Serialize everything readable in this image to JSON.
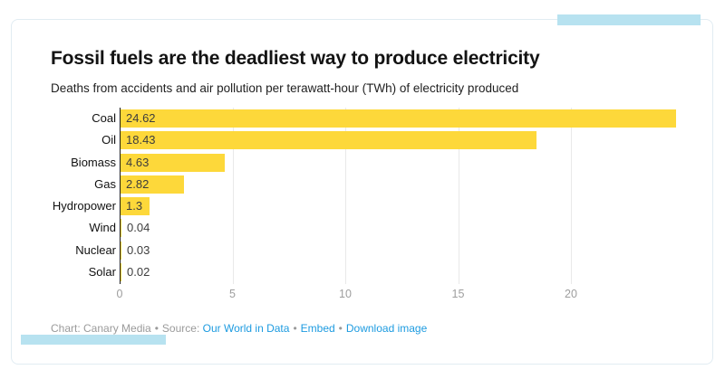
{
  "header": {
    "title": "Fossil fuels are the deadliest way to produce electricity",
    "subtitle": "Deaths from accidents and air pollution per terawatt-hour (TWh) of electricity produced"
  },
  "chart_data": {
    "type": "bar",
    "orientation": "horizontal",
    "title": "Fossil fuels are the deadliest way to produce electricity",
    "subtitle": "Deaths from accidents and air pollution per terawatt-hour (TWh) of electricity produced",
    "categories": [
      "Coal",
      "Oil",
      "Biomass",
      "Gas",
      "Hydropower",
      "Wind",
      "Nuclear",
      "Solar"
    ],
    "values": [
      24.62,
      18.43,
      4.63,
      2.82,
      1.3,
      0.04,
      0.03,
      0.02
    ],
    "value_labels": [
      "24.62",
      "18.43",
      "4.63",
      "2.82",
      "1.3",
      "0.04",
      "0.03",
      "0.02"
    ],
    "x_ticks": [
      0,
      5,
      10,
      15,
      20
    ],
    "xlim": [
      0,
      24.62
    ],
    "grid": true,
    "legend": "none",
    "bar_color": "#FDD83A"
  },
  "footer": {
    "credit": "Chart: Canary Media",
    "separator": "•",
    "source_prefix": "Source:",
    "links": [
      {
        "label": "Our World in Data"
      },
      {
        "label": "Embed"
      },
      {
        "label": "Download image"
      }
    ]
  },
  "colors": {
    "bar": "#FDD83A",
    "accent_blue": "#B7E2F0",
    "link_blue": "#1D9BE0",
    "muted_text": "#9A9A9A",
    "gridline": "#E9E9E9",
    "axis": "#1A1A1A",
    "card_border": "#E1ECF2"
  }
}
